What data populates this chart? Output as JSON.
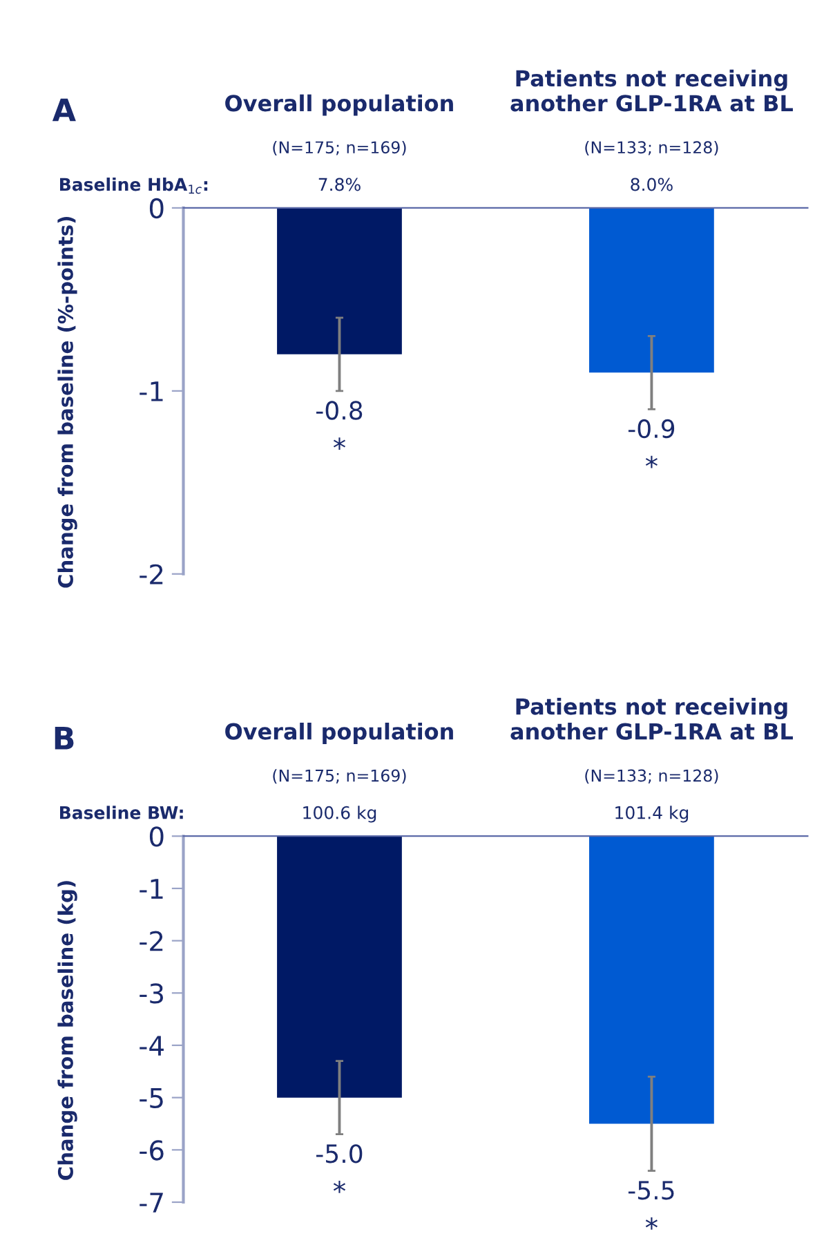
{
  "chart_data": [
    {
      "type": "bar",
      "title": "A",
      "ylabel": "Change from baseline (%-points)",
      "categories": [
        "Overall population",
        "Patients not receiving\nanother GLP-1RA at BL"
      ],
      "series": [
        {
          "colors": [
            "#001965",
            "#005ad2"
          ],
          "values": [
            -0.8,
            -0.9
          ],
          "errors": [
            0.2,
            0.2
          ],
          "value_labels": [
            "-0.8",
            "-0.9"
          ]
        }
      ],
      "ylim": [
        -2,
        0
      ],
      "yticks": [
        0,
        -1,
        -2
      ],
      "grid": false,
      "legend": false,
      "annotations": [
        "(N=175; n=169)",
        "(N=133; n=128)",
        "Baseline HbA$_{1c}$:",
        "7.8%",
        "8.0%",
        "*",
        "*"
      ]
    },
    {
      "type": "bar",
      "title": "B",
      "ylabel": "Change from baseline (kg)",
      "categories": [
        "Overall population",
        "Patients not receiving\nanother GLP-1RA at BL"
      ],
      "series": [
        {
          "colors": [
            "#001965",
            "#005ad2"
          ],
          "values": [
            -5.0,
            -5.5
          ],
          "errors": [
            0.7,
            0.9
          ],
          "value_labels": [
            "-5.0",
            "-5.5"
          ]
        }
      ],
      "ylim": [
        -7,
        0
      ],
      "yticks": [
        0,
        -1,
        -2,
        -3,
        -4,
        -5,
        -6,
        -7
      ],
      "grid": false,
      "legend": false,
      "annotations": [
        "(N=175; n=169)",
        "(N=133; n=128)",
        "Baseline BW:",
        "100.6 kg",
        "101.4 kg",
        "*",
        "*"
      ]
    }
  ]
}
